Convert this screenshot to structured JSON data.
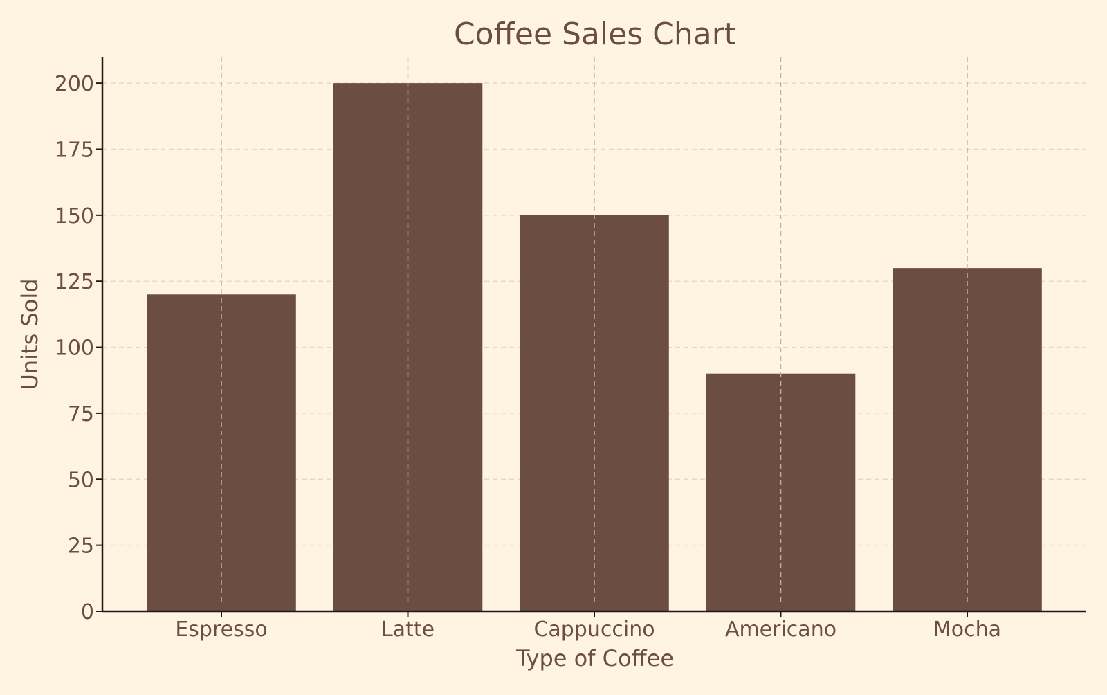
{
  "chart_data": {
    "type": "bar",
    "title": "Coffee Sales Chart",
    "xlabel": "Type of Coffee",
    "ylabel": "Units Sold",
    "categories": [
      "Espresso",
      "Latte",
      "Cappuccino",
      "Americano",
      "Mocha"
    ],
    "values": [
      120,
      200,
      150,
      90,
      130
    ],
    "ylim": [
      0,
      210
    ],
    "yticks": [
      0,
      25,
      50,
      75,
      100,
      125,
      150,
      175,
      200
    ],
    "grid": true,
    "legend": "none",
    "colors": {
      "background": "#FFF3E2",
      "bar": "#6B4D42",
      "text": "#6B4D42",
      "axis": "#1F1A17",
      "grid_h": "#E8D9C4",
      "grid_v": "#BEB3A7"
    }
  }
}
